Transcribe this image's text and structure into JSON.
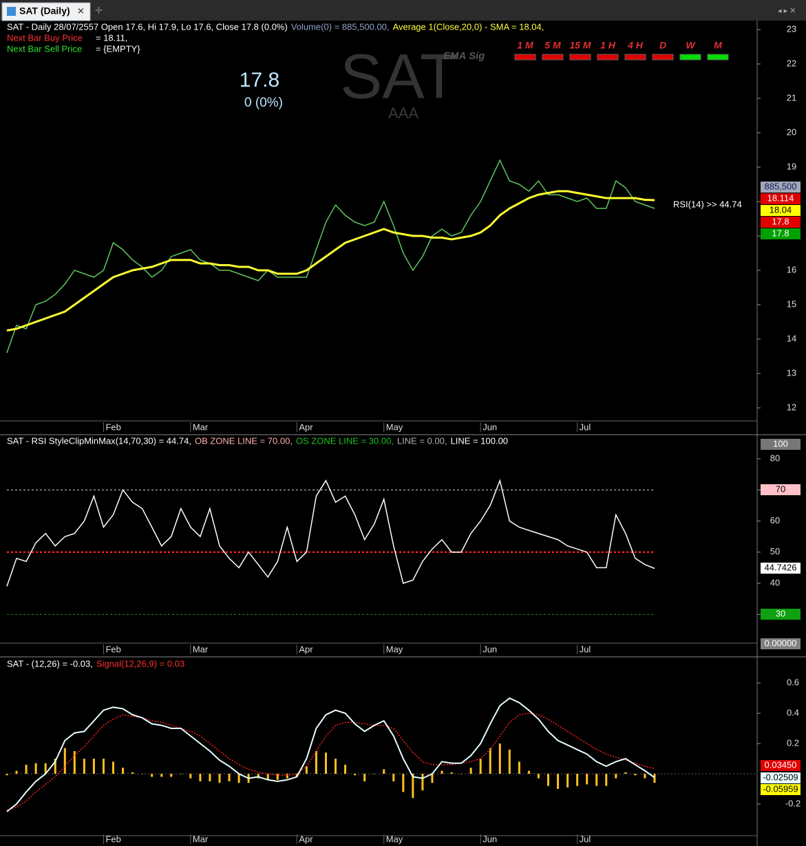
{
  "window": {
    "tab_title": "SAT (Daily)"
  },
  "chart_data": [
    {
      "type": "line",
      "header": [
        {
          "text": "SAT - Daily 28/07/2557 Open 17.6, Hi 17.9, Lo 17.6, Close 17.8 (0.0%)",
          "color": "#ffffff"
        },
        {
          "text": "Volume(0) = 885,500.00,",
          "color": "#8fa3c8"
        },
        {
          "text": "Average 1(Close,20,0) - SMA = 18.04,",
          "color": "#ffff40"
        }
      ],
      "buy_label": "Next Bar Buy Price",
      "buy_value": "= 18.11,",
      "sell_label": "Next Bar Sell Price",
      "sell_value": "= {EMPTY}",
      "symbol": "SAT",
      "symbol_sub": "AAA",
      "ema_label": "EMA Sig",
      "last_price": "17.8",
      "change": "0 (0%)",
      "signals": [
        {
          "label": "1 M",
          "color": "#e00000"
        },
        {
          "label": "5 M",
          "color": "#e00000"
        },
        {
          "label": "15 M",
          "color": "#e00000"
        },
        {
          "label": "1 H",
          "color": "#e00000"
        },
        {
          "label": "4 H",
          "color": "#e00000"
        },
        {
          "label": "D",
          "color": "#e00000"
        },
        {
          "label": "W",
          "color": "#00e000"
        },
        {
          "label": "M",
          "color": "#00e000"
        }
      ],
      "rsi_note": "RSI(14) >> 44.74",
      "categories": [
        null,
        null,
        null,
        null,
        null,
        null,
        null,
        null,
        null,
        null,
        "Feb",
        null,
        null,
        null,
        null,
        null,
        null,
        null,
        null,
        "Mar",
        null,
        null,
        null,
        null,
        null,
        null,
        null,
        null,
        null,
        null,
        "Apr",
        null,
        null,
        null,
        null,
        null,
        null,
        null,
        null,
        "May",
        null,
        null,
        null,
        null,
        null,
        null,
        null,
        null,
        null,
        "Jun",
        null,
        null,
        null,
        null,
        null,
        null,
        null,
        null,
        null,
        "Jul",
        null,
        null,
        null,
        null,
        null,
        null,
        null,
        null
      ],
      "series": [
        {
          "color": "#5ec85e",
          "width": 1.5,
          "values": [
            13.6,
            14.4,
            14.3,
            15.0,
            15.1,
            15.3,
            15.6,
            16.0,
            15.9,
            15.8,
            16.0,
            16.8,
            16.6,
            16.3,
            16.1,
            15.8,
            16.0,
            16.4,
            16.5,
            16.6,
            16.3,
            16.2,
            16.0,
            16.0,
            15.9,
            15.8,
            15.7,
            16.0,
            15.8,
            15.8,
            15.8,
            15.8,
            16.6,
            17.4,
            17.9,
            17.6,
            17.4,
            17.3,
            17.4,
            18.0,
            17.3,
            16.5,
            16.0,
            16.4,
            17.0,
            17.2,
            17.0,
            17.1,
            17.6,
            18.0,
            18.6,
            19.2,
            18.6,
            18.5,
            18.3,
            18.6,
            18.2,
            18.2,
            18.1,
            18.0,
            18.1,
            17.8,
            17.8,
            18.6,
            18.4,
            18.0,
            17.9,
            17.8
          ]
        },
        {
          "color": "#ffff30",
          "width": 3,
          "values": [
            14.25,
            14.3,
            14.4,
            14.5,
            14.6,
            14.7,
            14.8,
            15.0,
            15.2,
            15.4,
            15.6,
            15.8,
            15.9,
            16.0,
            16.05,
            16.1,
            16.2,
            16.3,
            16.3,
            16.3,
            16.2,
            16.2,
            16.15,
            16.15,
            16.1,
            16.1,
            16.0,
            16.0,
            15.9,
            15.9,
            15.9,
            16.0,
            16.2,
            16.4,
            16.6,
            16.8,
            16.9,
            17.0,
            17.1,
            17.2,
            17.1,
            17.05,
            17.0,
            17.0,
            16.95,
            16.95,
            16.9,
            16.95,
            17.0,
            17.1,
            17.3,
            17.6,
            17.8,
            17.95,
            18.1,
            18.2,
            18.25,
            18.3,
            18.3,
            18.25,
            18.2,
            18.15,
            18.1,
            18.1,
            18.1,
            18.1,
            18.05,
            18.04
          ]
        }
      ],
      "ylim": [
        11.62,
        23.26
      ],
      "yticks": [
        12,
        13,
        14,
        15,
        16,
        17,
        18,
        19,
        20,
        21,
        22,
        23
      ],
      "tags": [
        {
          "label": "885,500",
          "color": "#a0a8b8",
          "text_color": "#102060"
        },
        {
          "label": "18.114",
          "color": "#e00000",
          "text_color": "#ffffff"
        },
        {
          "label": "18.04",
          "color": "#ffff00",
          "text_color": "#000000"
        },
        {
          "label": "17.8",
          "color": "#e00000",
          "text_color": "#ffffff"
        },
        {
          "label": "17.8",
          "color": "#00a000",
          "text_color": "#ffffff"
        }
      ]
    },
    {
      "type": "line",
      "header": [
        {
          "text": "SAT - RSI StyleClipMinMax(14,70,30) = 44.74,",
          "color": "#ffffff"
        },
        {
          "text": "OB ZONE LINE = 70.00,",
          "color": "#ffb0b0"
        },
        {
          "text": "OS ZONE LINE = 30.00,",
          "color": "#20c020"
        },
        {
          "text": "LINE = 0.00,",
          "color": "#b0b0b0"
        },
        {
          "text": "LINE = 100.00",
          "color": "#ffffff"
        }
      ],
      "categories": [
        null,
        null,
        null,
        null,
        null,
        null,
        null,
        null,
        null,
        null,
        "Feb",
        null,
        null,
        null,
        null,
        null,
        null,
        null,
        null,
        "Mar",
        null,
        null,
        null,
        null,
        null,
        null,
        null,
        null,
        null,
        null,
        "Apr",
        null,
        null,
        null,
        null,
        null,
        null,
        null,
        null,
        "May",
        null,
        null,
        null,
        null,
        null,
        null,
        null,
        null,
        null,
        "Jun",
        null,
        null,
        null,
        null,
        null,
        null,
        null,
        null,
        null,
        "Jul",
        null,
        null,
        null,
        null,
        null,
        null,
        null,
        null
      ],
      "series": [
        {
          "color": "#ffffff",
          "width": 1.5,
          "values": [
            39,
            48,
            47,
            53,
            56,
            52,
            55,
            56,
            60,
            68,
            58,
            62,
            70,
            66,
            64,
            58,
            52,
            55,
            64,
            58,
            55,
            64,
            52,
            48,
            45,
            50,
            46,
            42,
            47,
            58,
            47,
            50,
            68,
            73,
            66,
            68,
            62,
            54,
            59,
            67,
            52,
            40,
            41,
            47,
            51,
            54,
            50,
            50,
            56,
            60,
            65,
            73,
            60,
            58,
            57,
            56,
            55,
            54,
            52,
            51,
            50,
            45,
            45,
            62,
            56,
            48,
            46,
            44.74
          ]
        }
      ],
      "levels": [
        {
          "value": 70,
          "color": "#dddddd"
        },
        {
          "value": 50,
          "color": "#ff2020"
        },
        {
          "value": 30,
          "color": "#20a020"
        }
      ],
      "ylim": [
        20.77,
        87.73
      ],
      "yticks": [
        30,
        40,
        50,
        60,
        70,
        80
      ],
      "tags": [
        {
          "label": "100",
          "color": "#777777",
          "text_color": "#ffffff"
        },
        {
          "label": "70",
          "color": "#ffc0c8",
          "text_color": "#000000"
        },
        {
          "label": "44.7426",
          "color": "#ffffff",
          "text_color": "#000000"
        },
        {
          "label": "30",
          "color": "#10a010",
          "text_color": "#ffffff"
        },
        {
          "label": "0.00000",
          "color": "#808080",
          "text_color": "#ffffff"
        }
      ]
    },
    {
      "type": "line",
      "header": [
        {
          "text": "SAT - (12,26) = -0.03,",
          "color": "#ffffff"
        },
        {
          "text": "Signal(12,26,9) = 0.03",
          "color": "#ff3030"
        }
      ],
      "categories": [
        null,
        null,
        null,
        null,
        null,
        null,
        null,
        null,
        null,
        null,
        "Feb",
        null,
        null,
        null,
        null,
        null,
        null,
        null,
        null,
        "Mar",
        null,
        null,
        null,
        null,
        null,
        null,
        null,
        null,
        null,
        null,
        "Apr",
        null,
        null,
        null,
        null,
        null,
        null,
        null,
        null,
        "May",
        null,
        null,
        null,
        null,
        null,
        null,
        null,
        null,
        null,
        "Jun",
        null,
        null,
        null,
        null,
        null,
        null,
        null,
        null,
        null,
        "Jul",
        null,
        null,
        null,
        null,
        null,
        null,
        null,
        null
      ],
      "series": [
        {
          "style": "bar",
          "color": "#ffc020",
          "values": [
            -0.01,
            0.02,
            0.06,
            0.07,
            0.07,
            0.1,
            0.17,
            0.15,
            0.1,
            0.1,
            0.1,
            0.08,
            0.04,
            0.01,
            0.0,
            -0.02,
            -0.02,
            -0.02,
            0.0,
            -0.03,
            -0.05,
            -0.05,
            -0.06,
            -0.05,
            -0.06,
            -0.06,
            -0.03,
            -0.04,
            -0.04,
            -0.03,
            -0.02,
            0.05,
            0.15,
            0.14,
            0.1,
            0.06,
            -0.01,
            -0.05,
            0.0,
            0.03,
            -0.05,
            -0.12,
            -0.16,
            -0.11,
            -0.06,
            0.02,
            0.01,
            0.0,
            0.04,
            0.1,
            0.17,
            0.2,
            0.16,
            0.08,
            0.02,
            -0.03,
            -0.08,
            -0.1,
            -0.09,
            -0.08,
            -0.07,
            -0.08,
            -0.08,
            -0.03,
            0.01,
            -0.01,
            -0.03,
            -0.05959
          ]
        },
        {
          "style": "dotted",
          "color": "#ff2020",
          "width": 1.5,
          "values": [
            -0.24,
            -0.22,
            -0.18,
            -0.12,
            -0.07,
            -0.02,
            0.05,
            0.12,
            0.18,
            0.25,
            0.32,
            0.36,
            0.39,
            0.38,
            0.37,
            0.35,
            0.34,
            0.32,
            0.3,
            0.28,
            0.25,
            0.2,
            0.15,
            0.1,
            0.06,
            0.03,
            0.01,
            0.0,
            -0.01,
            -0.01,
            0.0,
            0.05,
            0.15,
            0.25,
            0.32,
            0.34,
            0.34,
            0.33,
            0.32,
            0.32,
            0.3,
            0.22,
            0.14,
            0.08,
            0.06,
            0.06,
            0.06,
            0.07,
            0.08,
            0.1,
            0.16,
            0.25,
            0.34,
            0.39,
            0.4,
            0.39,
            0.36,
            0.32,
            0.28,
            0.24,
            0.2,
            0.16,
            0.13,
            0.11,
            0.09,
            0.07,
            0.05,
            0.0345
          ]
        },
        {
          "style": "line",
          "color": "#e8ffff",
          "width": 2,
          "values": [
            -0.25,
            -0.2,
            -0.12,
            -0.05,
            0.0,
            0.08,
            0.22,
            0.27,
            0.28,
            0.35,
            0.42,
            0.44,
            0.43,
            0.39,
            0.37,
            0.33,
            0.32,
            0.3,
            0.3,
            0.25,
            0.2,
            0.15,
            0.09,
            0.05,
            0.0,
            -0.03,
            -0.02,
            -0.04,
            -0.05,
            -0.04,
            -0.02,
            0.1,
            0.3,
            0.39,
            0.42,
            0.4,
            0.33,
            0.28,
            0.32,
            0.35,
            0.25,
            0.1,
            -0.02,
            -0.03,
            0.0,
            0.08,
            0.07,
            0.07,
            0.12,
            0.2,
            0.33,
            0.45,
            0.5,
            0.47,
            0.42,
            0.36,
            0.28,
            0.22,
            0.19,
            0.16,
            0.13,
            0.08,
            0.05,
            0.08,
            0.1,
            0.06,
            0.02,
            -0.025
          ]
        }
      ],
      "ylim": [
        -0.409,
        0.773
      ],
      "yticks": [
        -0.2,
        0.2,
        0.4,
        0.6
      ],
      "tags": [
        {
          "label": "0.03450",
          "color": "#e00000",
          "text_color": "#ffffff"
        },
        {
          "label": "-0.02509",
          "color": "#e8ffff",
          "text_color": "#000000"
        },
        {
          "label": "-0.05959",
          "color": "#ffff00",
          "text_color": "#000000"
        }
      ]
    }
  ]
}
